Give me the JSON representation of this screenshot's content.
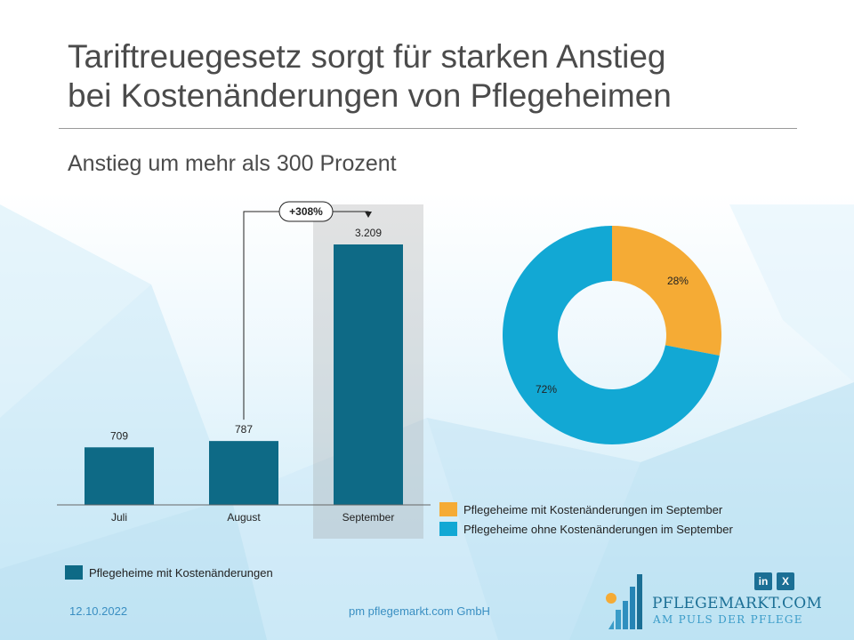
{
  "title": {
    "line1": "Tariftreuegesetz sorgt für starken Anstieg",
    "line2": "bei Kostenänderungen von Pflegeheimen"
  },
  "subtitle": "Anstieg um mehr als 300 Prozent",
  "chart_data": [
    {
      "type": "bar",
      "categories": [
        "Juli",
        "August",
        "September"
      ],
      "values": [
        709,
        787,
        3209
      ],
      "value_labels": [
        "709",
        "787",
        "3.209"
      ],
      "series_name": "Pflegeheime mit Kostenänderungen",
      "highlighted_category": "September",
      "annotation": {
        "label": "+308%",
        "from": "August",
        "to": "September"
      },
      "ylim": [
        0,
        3209
      ],
      "color": "#0e6a86"
    },
    {
      "type": "pie",
      "variant": "donut",
      "slices": [
        {
          "label": "Pflegeheime mit Kostenänderungen im September",
          "value": 28,
          "display": "28%",
          "color": "#f5ab35"
        },
        {
          "label": "Pflegeheime ohne Kostenänderungen im September",
          "value": 72,
          "display": "72%",
          "color": "#12a8d4"
        }
      ]
    }
  ],
  "footer": {
    "date": "12.10.2022",
    "company": "pm pflegemarkt.com GmbH"
  },
  "logo": {
    "name": "PFLEGEMARKT.COM",
    "tagline": "AM PULS DER PFLEGE"
  },
  "social": {
    "linkedin": "in",
    "xing": "X"
  }
}
